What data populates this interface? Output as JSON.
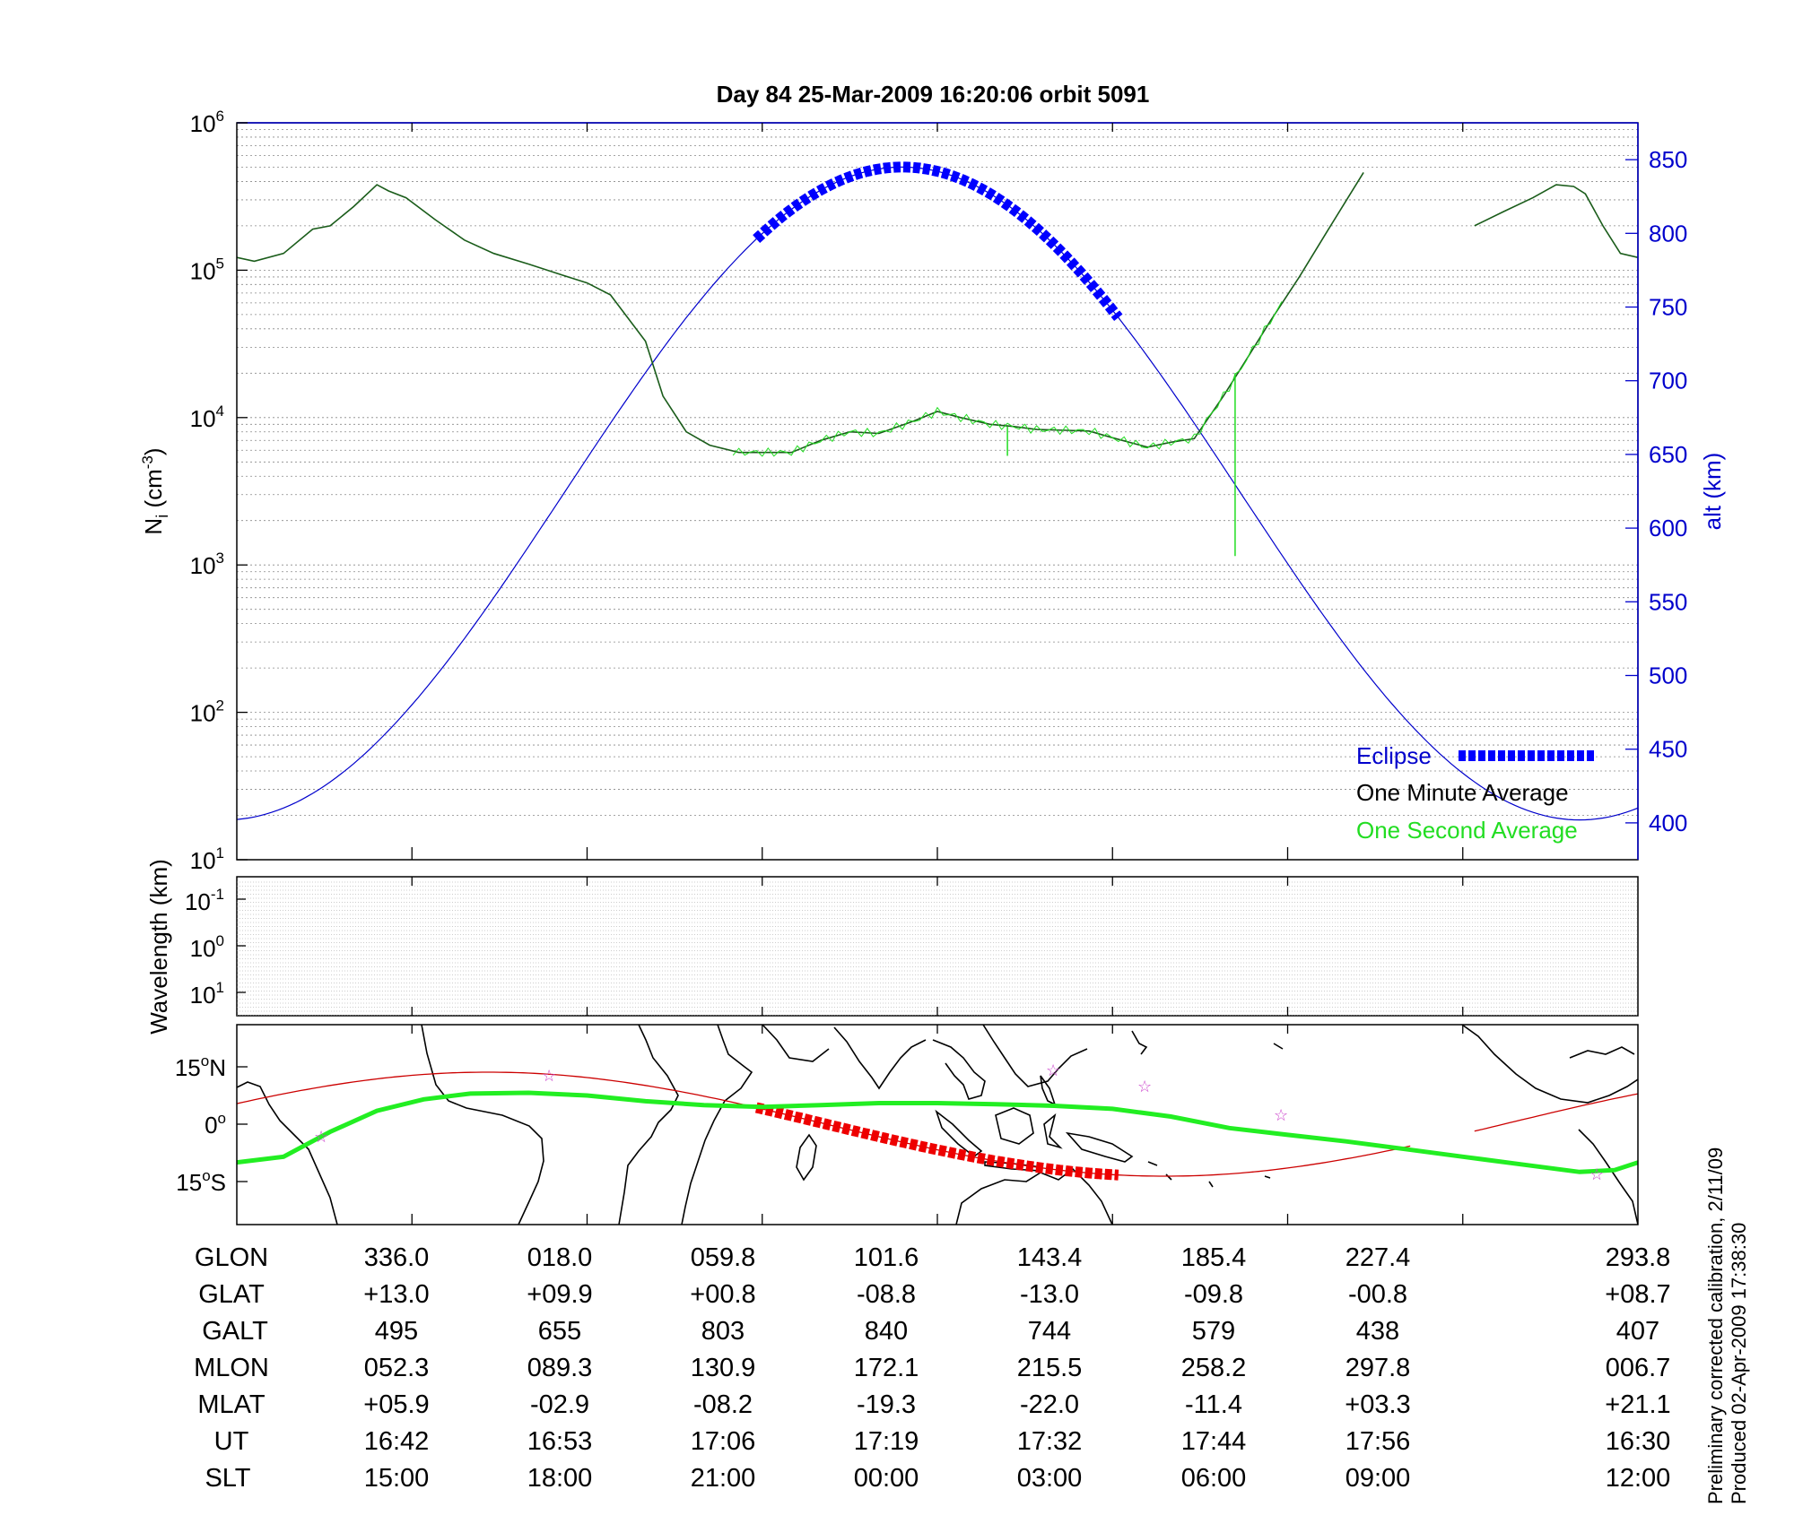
{
  "title": "Day 84  25-Mar-2009 16:20:06   orbit 5091",
  "top_panel": {
    "ylabel_left_base": "N",
    "ylabel_left_sub": "i",
    "ylabel_left_unit_pre": " (cm",
    "ylabel_left_unit_sup": "-3",
    "ylabel_left_unit_post": ")",
    "ylabel_right": "alt (km)",
    "left_ticks": [
      {
        "base": "10",
        "exp": "1",
        "value": 10
      },
      {
        "base": "10",
        "exp": "2",
        "value": 100
      },
      {
        "base": "10",
        "exp": "3",
        "value": 1000
      },
      {
        "base": "10",
        "exp": "4",
        "value": 10000
      },
      {
        "base": "10",
        "exp": "5",
        "value": 100000
      },
      {
        "base": "10",
        "exp": "6",
        "value": 1000000
      }
    ],
    "right_ticks": [
      "400",
      "450",
      "500",
      "550",
      "600",
      "650",
      "700",
      "750",
      "800",
      "850"
    ],
    "legend": {
      "eclipse": "Eclipse",
      "minute": "One Minute Average",
      "second": "One Second Average"
    }
  },
  "middle_panel": {
    "ylabel": "Wavelength (km)",
    "ticks": [
      {
        "base": "10",
        "exp": "-1"
      },
      {
        "base": "10",
        "exp": "0"
      },
      {
        "base": "10",
        "exp": "1"
      }
    ]
  },
  "map_panel": {
    "ticks": [
      {
        "num": "15",
        "deg": "o",
        "dir": "N"
      },
      {
        "num": "0",
        "deg": "o",
        "dir": ""
      },
      {
        "num": "15",
        "deg": "o",
        "dir": "S"
      }
    ]
  },
  "table": {
    "labels": [
      "GLON",
      "GLAT",
      "GALT",
      "MLON",
      "MLAT",
      "UT",
      "SLT"
    ],
    "columns": [
      [
        "336.0",
        "+13.0",
        "495",
        "052.3",
        "+05.9",
        "16:42",
        "15:00"
      ],
      [
        "018.0",
        "+09.9",
        "655",
        "089.3",
        "-02.9",
        "16:53",
        "18:00"
      ],
      [
        "059.8",
        "+00.8",
        "803",
        "130.9",
        "-08.2",
        "17:06",
        "21:00"
      ],
      [
        "101.6",
        "-08.8",
        "840",
        "172.1",
        "-19.3",
        "17:19",
        "00:00"
      ],
      [
        "143.4",
        "-13.0",
        "744",
        "215.5",
        "-22.0",
        "17:32",
        "03:00"
      ],
      [
        "185.4",
        "-09.8",
        "579",
        "258.2",
        "-11.4",
        "17:44",
        "06:00"
      ],
      [
        "227.4",
        "-00.8",
        "438",
        "297.8",
        "+03.3",
        "17:56",
        "09:00"
      ],
      [
        "293.8",
        "+08.7",
        "407",
        "006.7",
        "+21.1",
        "16:30",
        "12:00"
      ]
    ]
  },
  "side_notes": [
    "Preliminary corrected calibration, 2/11/09",
    "Produced 02-Apr-2009 17:38:30"
  ],
  "colors": {
    "altitude": "#0000cc",
    "eclipse": "#0000ff",
    "minute_avg": "#1a5c1a",
    "second_avg": "#22dd22",
    "track": "#cc0000",
    "eclipse_track": "#ee0000",
    "ground_track": "#22ee22",
    "stars": "#cc44cc"
  },
  "chart_data": [
    {
      "type": "line",
      "title": "Day 84  25-Mar-2009 16:20:06   orbit 5091",
      "x_axis": "SLT (hours, 12:00 to 12:00)",
      "yscale": "log",
      "ylim": [
        10,
        1000000
      ],
      "y2lim": [
        375,
        875
      ],
      "grid": true,
      "legend_position": "bottom-right",
      "series": [
        {
          "name": "One Minute Average",
          "axis": "left",
          "x": [
            12.0,
            12.3,
            12.8,
            13.3,
            13.6,
            14.0,
            14.4,
            14.6,
            14.9,
            15.4,
            15.9,
            16.4,
            17.0,
            17.6,
            18.0,
            18.4,
            19.0,
            19.3,
            19.7,
            20.1,
            20.6,
            21.0,
            21.5,
            22.0,
            22.5,
            23.0,
            23.6,
            24.0,
            24.4,
            24.9,
            25.3,
            25.7,
            26.2,
            26.6,
            27.0,
            27.6,
            28.0,
            28.4,
            28.9,
            29.3,
            29.7,
            30.2,
            30.7,
            31.3,
            31.8,
            32.2,
            32.3
          ],
          "values": [
            122000,
            115000,
            130000,
            190000,
            200000,
            270000,
            380000,
            345000,
            310000,
            220000,
            160000,
            130000,
            110000,
            92000,
            82000,
            68000,
            33000,
            14000,
            8000,
            6500,
            5800,
            5800,
            5800,
            7000,
            8000,
            7800,
            9500,
            11000,
            10000,
            9000,
            8700,
            8300,
            8200,
            8100,
            7300,
            6300,
            6800,
            7200,
            14000,
            25000,
            45000,
            90000,
            190000,
            460000,
            null,
            null,
            null
          ]
        },
        {
          "name": "One Second Average",
          "axis": "left",
          "x": [
            25.2,
            29.1
          ],
          "values": [
            5500,
            1150
          ],
          "note": "downward spikes from the main trace"
        },
        {
          "name": "alt (km)",
          "axis": "right",
          "x": [
            12.0,
            13.5,
            15.0,
            16.5,
            18.0,
            19.5,
            20.9,
            22.0,
            23.3,
            24.0,
            25.5,
            27.0,
            28.5,
            30.0,
            31.5,
            33.0,
            34.5,
            35.4,
            36.0
          ],
          "values": [
            407,
            430,
            495,
            575,
            655,
            740,
            800,
            835,
            845,
            840,
            805,
            744,
            660,
            579,
            500,
            438,
            410,
            402,
            407
          ]
        },
        {
          "name": "Eclipse",
          "axis": "right",
          "x": [
            20.9,
            24.0,
            27.1
          ],
          "values": [
            756,
            845,
            680
          ]
        }
      ]
    },
    {
      "type": "map",
      "ylabel": "latitude",
      "series": [
        {
          "name": "orbit track",
          "lon": [
            293.8,
            336.0,
            18.0,
            59.8,
            101.6,
            143.4,
            185.4,
            227.4
          ],
          "lat": [
            8.7,
            13.0,
            9.9,
            0.8,
            -8.8,
            -13.0,
            -9.8,
            -0.8
          ]
        },
        {
          "name": "magnetic equator (ground)",
          "x_fraction_marks": [
            0.0,
            1.0
          ],
          "lat_range": [
            -12,
            11
          ]
        }
      ]
    }
  ]
}
